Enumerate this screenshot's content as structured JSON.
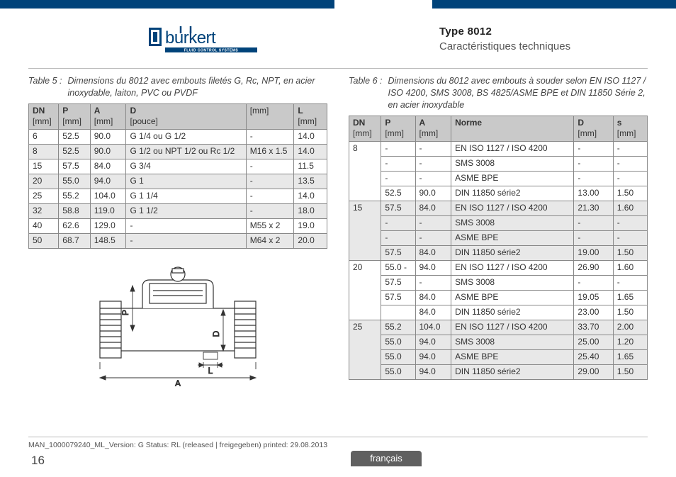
{
  "header": {
    "logo_brand": "burkert",
    "logo_tagline": "FLUID CONTROL SYSTEMS",
    "type_label": "Type 8012",
    "subtitle": "Caractéristiques techniques"
  },
  "table5": {
    "caption_label": "Table 5 :",
    "caption_text": "Dimensions du 8012 avec embouts filetés G, Rc, NPT, en acier inoxydable, laiton, PVC ou PVDF",
    "head": [
      {
        "label": "DN",
        "unit": "[mm]"
      },
      {
        "label": "P",
        "unit": "[mm]"
      },
      {
        "label": "A",
        "unit": "[mm]"
      },
      {
        "label": "D",
        "unit": "[pouce]"
      },
      {
        "label": "",
        "unit": "[mm]"
      },
      {
        "label": "L",
        "unit": "[mm]"
      }
    ],
    "rows": [
      [
        "6",
        "52.5",
        "90.0",
        "G 1/4 ou G 1/2",
        "-",
        "14.0"
      ],
      [
        "8",
        "52.5",
        "90.0",
        "G 1/2 ou NPT 1/2 ou Rc 1/2",
        "M16 x 1.5",
        "14.0"
      ],
      [
        "15",
        "57.5",
        "84.0",
        "G 3/4",
        "-",
        "11.5"
      ],
      [
        "20",
        "55.0",
        "94.0",
        "G 1",
        "-",
        "13.5"
      ],
      [
        "25",
        "55.2",
        "104.0",
        "G 1 1/4",
        "-",
        "14.0"
      ],
      [
        "32",
        "58.8",
        "119.0",
        "G 1 1/2",
        "-",
        "18.0"
      ],
      [
        "40",
        "62.6",
        "129.0",
        "-",
        "M55 x 2",
        "19.0"
      ],
      [
        "50",
        "68.7",
        "148.5",
        "-",
        "M64 x 2",
        "20.0"
      ]
    ]
  },
  "table6": {
    "caption_label": "Table 6 :",
    "caption_text": "Dimensions du 8012 avec embouts à souder selon EN ISO 1127 / ISO 4200, SMS 3008, BS 4825/ASME BPE et DIN 11850 Série 2, en acier inoxydable",
    "head": [
      {
        "label": "DN",
        "unit": "[mm]"
      },
      {
        "label": "P",
        "unit": "[mm]"
      },
      {
        "label": "A",
        "unit": "[mm]"
      },
      {
        "label": "Norme",
        "unit": ""
      },
      {
        "label": "D",
        "unit": "[mm]"
      },
      {
        "label": "s",
        "unit": "[mm]"
      }
    ],
    "groups": [
      {
        "dn": "8",
        "shade": "even",
        "rows": [
          [
            "-",
            "-",
            "EN ISO 1127 / ISO 4200",
            "-",
            "-"
          ],
          [
            "-",
            "-",
            "SMS 3008",
            "-",
            "-"
          ],
          [
            "-",
            "-",
            "ASME BPE",
            "-",
            "-"
          ],
          [
            "52.5",
            "90.0",
            "DIN 11850 série2",
            "13.00",
            "1.50"
          ]
        ]
      },
      {
        "dn": "15",
        "shade": "odd",
        "rows": [
          [
            "57.5",
            "84.0",
            "EN ISO 1127 / ISO 4200",
            "21.30",
            "1.60"
          ],
          [
            "-",
            "-",
            "SMS 3008",
            "-",
            "-"
          ],
          [
            "-",
            "-",
            "ASME BPE",
            "-",
            "-"
          ],
          [
            "57.5",
            "84.0",
            "DIN 11850 série2",
            "19.00",
            "1.50"
          ]
        ]
      },
      {
        "dn": "20",
        "shade": "even",
        "rows": [
          [
            "55.0 -",
            "94.0",
            "EN ISO 1127 / ISO 4200",
            "26.90",
            "1.60"
          ],
          [
            "57.5",
            "-",
            "SMS 3008",
            "-",
            "-"
          ],
          [
            "57.5",
            "84.0",
            "ASME BPE",
            "19.05",
            "1.65"
          ],
          [
            "",
            "84.0",
            "DIN 11850 série2",
            "23.00",
            "1.50"
          ]
        ]
      },
      {
        "dn": "25",
        "shade": "odd",
        "rows": [
          [
            "55.2",
            "104.0",
            "EN ISO 1127 / ISO 4200",
            "33.70",
            "2.00"
          ],
          [
            "55.0",
            "94.0",
            "SMS 3008",
            "25.00",
            "1.20"
          ],
          [
            "55.0",
            "94.0",
            "ASME BPE",
            "25.40",
            "1.65"
          ],
          [
            "55.0",
            "94.0",
            "DIN 11850 série2",
            "29.00",
            "1.50"
          ]
        ]
      }
    ]
  },
  "diagram": {
    "label_P": "P",
    "label_D": "D",
    "label_L": "L",
    "label_A": "A"
  },
  "footer": {
    "doc_line": "MAN_1000079240_ML_Version: G Status: RL (released | freigegeben)  printed: 29.08.2013",
    "page_number": "16",
    "language_tab": "français"
  },
  "style": {
    "brand_blue": "#00437a",
    "header_gray": "#c9c9c9",
    "row_shade": "#e8e8e8",
    "border_gray": "#888888",
    "lang_tab_bg": "#606060"
  }
}
